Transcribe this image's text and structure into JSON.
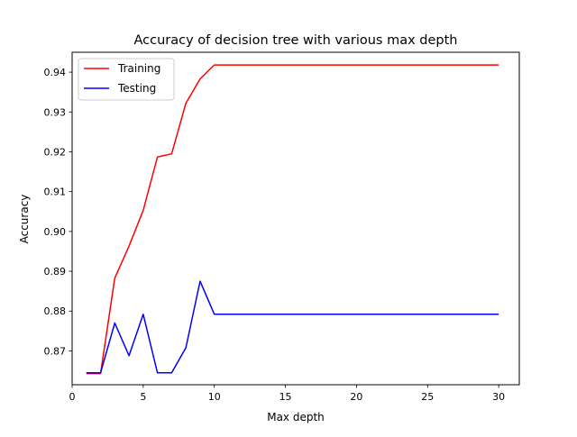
{
  "chart_data": {
    "type": "line",
    "title": "Accuracy of decision tree with various max depth",
    "xlabel": "Max depth",
    "ylabel": "Accuracy",
    "xlim": [
      0,
      31.45
    ],
    "ylim": [
      0.8615,
      0.945
    ],
    "x_ticks": [
      0,
      5,
      10,
      15,
      20,
      25,
      30
    ],
    "x_tick_labels": [
      "0",
      "5",
      "10",
      "15",
      "20",
      "25",
      "30"
    ],
    "y_ticks": [
      0.87,
      0.88,
      0.89,
      0.9,
      0.91,
      0.92,
      0.93,
      0.94
    ],
    "y_tick_labels": [
      "0.87",
      "0.88",
      "0.89",
      "0.90",
      "0.91",
      "0.92",
      "0.93",
      "0.94"
    ],
    "grid": false,
    "legend_position": "top-left",
    "x": [
      1,
      2,
      3,
      4,
      5,
      6,
      7,
      8,
      9,
      10,
      11,
      12,
      13,
      14,
      15,
      16,
      17,
      18,
      19,
      20,
      21,
      22,
      23,
      24,
      25,
      26,
      27,
      28,
      29,
      30
    ],
    "series": [
      {
        "name": "Training",
        "color": "#ff0000",
        "values": [
          0.8643,
          0.8643,
          0.8883,
          0.8963,
          0.9053,
          0.9187,
          0.9195,
          0.9322,
          0.9383,
          0.9418,
          0.9418,
          0.9418,
          0.9418,
          0.9418,
          0.9418,
          0.9418,
          0.9418,
          0.9418,
          0.9418,
          0.9418,
          0.9418,
          0.9418,
          0.9418,
          0.9418,
          0.9418,
          0.9418,
          0.9418,
          0.9418,
          0.9418,
          0.9418
        ]
      },
      {
        "name": "Testing",
        "color": "#0000ff",
        "values": [
          0.8645,
          0.8645,
          0.877,
          0.8688,
          0.8792,
          0.8645,
          0.8645,
          0.8708,
          0.8875,
          0.8792,
          0.8792,
          0.8792,
          0.8792,
          0.8792,
          0.8792,
          0.8792,
          0.8792,
          0.8792,
          0.8792,
          0.8792,
          0.8792,
          0.8792,
          0.8792,
          0.8792,
          0.8792,
          0.8792,
          0.8792,
          0.8792,
          0.8792,
          0.8792
        ]
      }
    ]
  }
}
